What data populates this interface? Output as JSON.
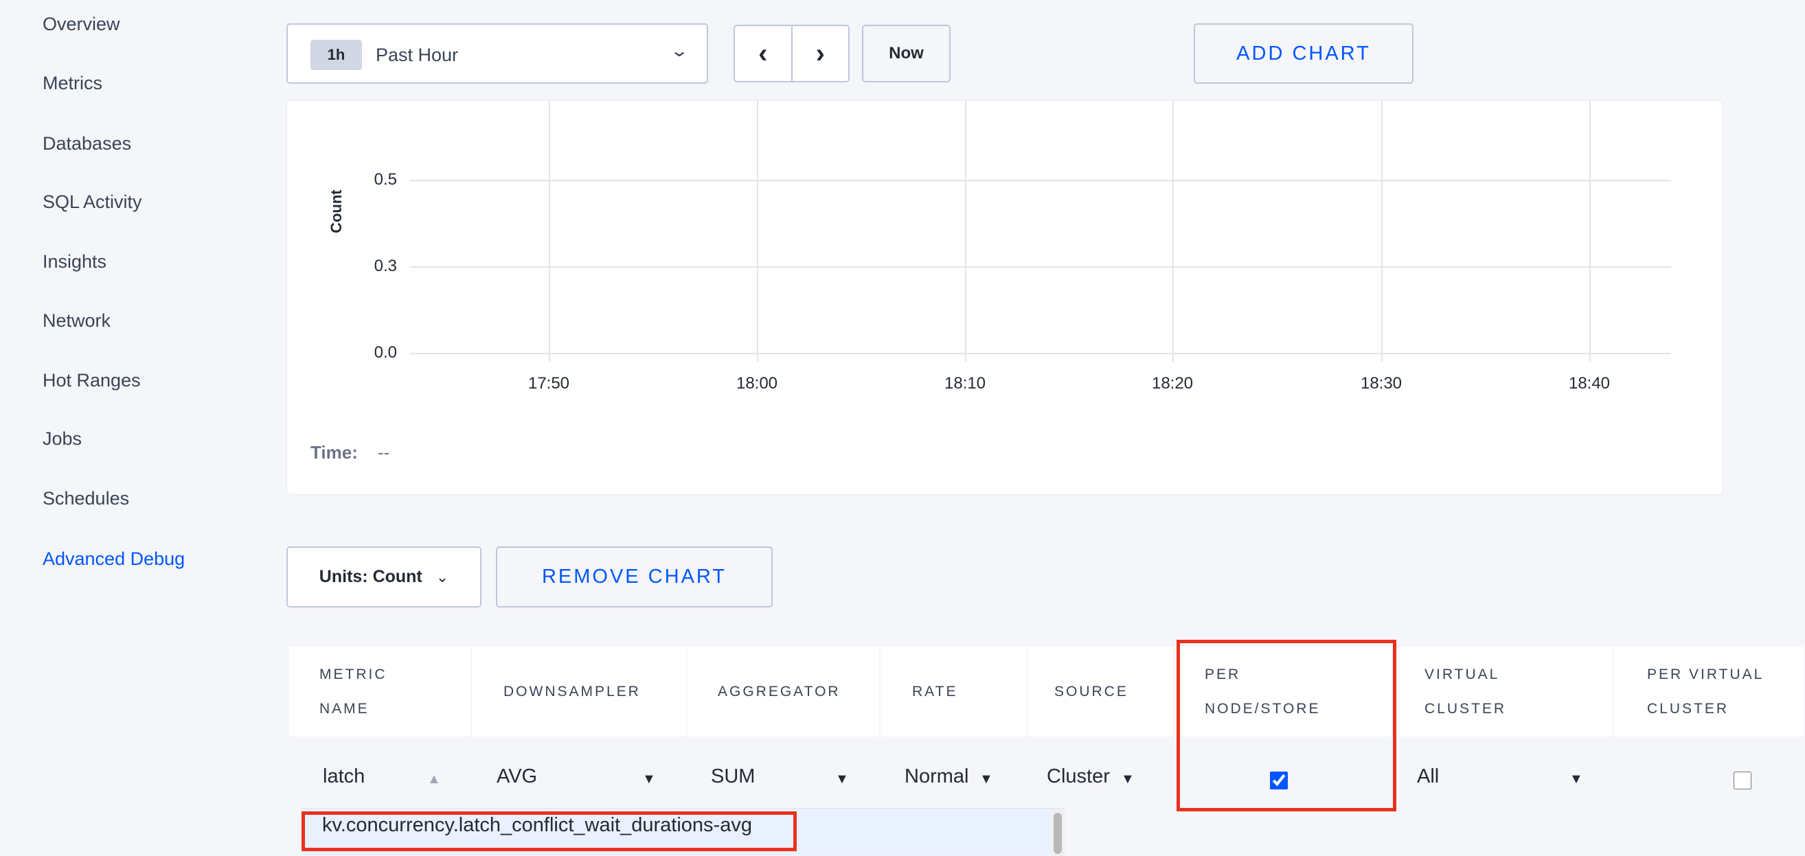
{
  "sidebar": {
    "items": [
      "Overview",
      "Metrics",
      "Databases",
      "SQL Activity",
      "Insights",
      "Network",
      "Hot Ranges",
      "Jobs",
      "Schedules",
      "Advanced Debug"
    ],
    "active": "Advanced Debug"
  },
  "toolbar": {
    "time_badge": "1h",
    "time_label": "Past Hour",
    "prev_icon": "chevron-left-icon",
    "next_icon": "chevron-right-icon",
    "now_label": "Now",
    "add_chart_label": "ADD CHART"
  },
  "chart_data": {
    "type": "line",
    "ylabel": "Count",
    "y_ticks": [
      "0.5",
      "0.3",
      "0.0"
    ],
    "x_ticks": [
      "17:50",
      "18:00",
      "18:10",
      "18:20",
      "18:30",
      "18:40"
    ],
    "series": [],
    "grid": true
  },
  "chart_footer": {
    "time_label": "Time:",
    "time_value": "--"
  },
  "controls": {
    "units_label": "Units: Count",
    "remove_chart_label": "REMOVE CHART"
  },
  "table": {
    "headers": [
      "METRIC NAME",
      "DOWNSAMPLER",
      "AGGREGATOR",
      "RATE",
      "SOURCE",
      "PER NODE/STORE",
      "VIRTUAL CLUSTER",
      "PER VIRTUAL CLUSTER"
    ],
    "row": {
      "metric_name": "latch",
      "downsampler": "AVG",
      "aggregator": "SUM",
      "rate": "Normal",
      "source": "Cluster",
      "per_node_store": true,
      "virtual_cluster": "All",
      "per_virtual_cluster": false
    },
    "suggestion": "kv.concurrency.latch_conflict_wait_durations-avg"
  },
  "colors": {
    "accent": "#0055ff",
    "highlight": "#e8321e"
  }
}
